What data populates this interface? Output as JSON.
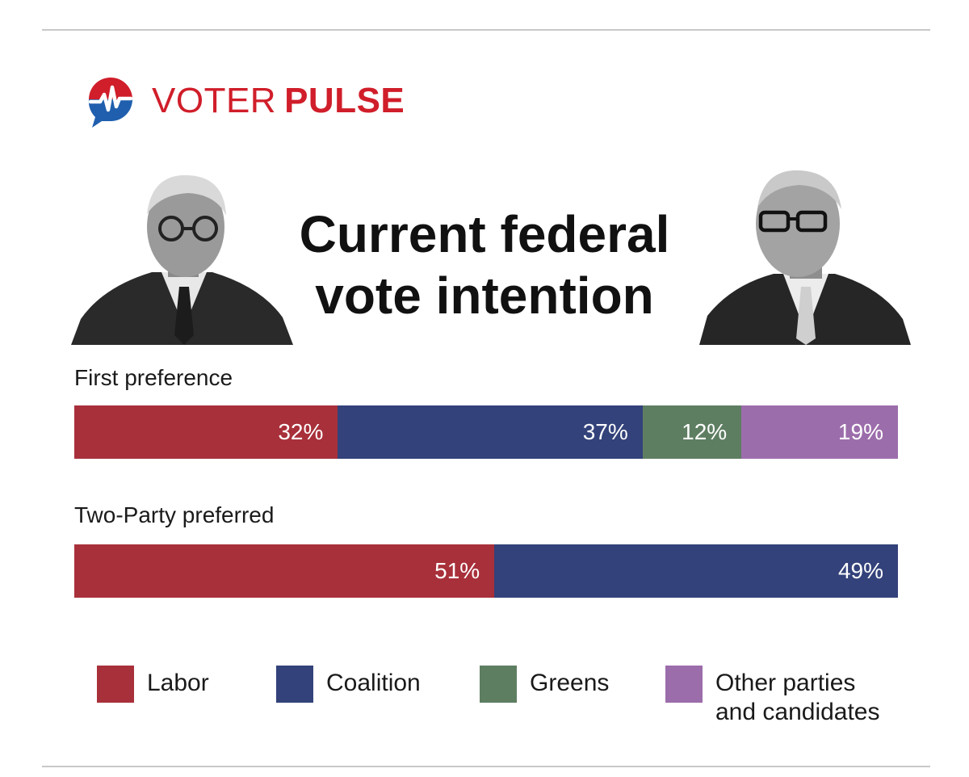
{
  "brand": {
    "name_part1": "VOTER",
    "name_part2": "PULSE",
    "logo_icon": "heartbeat-speech-bubble-icon"
  },
  "portraits": {
    "left": "portrait-photo",
    "right": "portrait-photo"
  },
  "colors": {
    "labor": "#a8303a",
    "coalition": "#33427a",
    "greens": "#5e7e62",
    "other": "#9c6dab",
    "brand_red": "#d01e2a",
    "brand_blue": "#1f5fae"
  },
  "chart_data": {
    "type": "bar",
    "title_line1": "Current federal",
    "title_line2": "vote intention",
    "stacked": true,
    "orientation": "horizontal",
    "xlim": [
      0,
      100
    ],
    "categories": [
      "First preference",
      "Two-Party preferred"
    ],
    "series": [
      {
        "name": "Labor",
        "values": [
          32,
          51
        ],
        "labels": [
          "32%",
          "51%"
        ],
        "color": "#a8303a"
      },
      {
        "name": "Coalition",
        "values": [
          37,
          49
        ],
        "labels": [
          "37%",
          "49%"
        ],
        "color": "#33427a"
      },
      {
        "name": "Greens",
        "values": [
          12,
          null
        ],
        "labels": [
          "12%",
          ""
        ],
        "color": "#5e7e62"
      },
      {
        "name": "Other parties and candidates",
        "values": [
          19,
          null
        ],
        "labels": [
          "19%",
          ""
        ],
        "color": "#9c6dab"
      }
    ],
    "legend_position": "bottom",
    "legend": [
      {
        "line1": "Labor",
        "line2": ""
      },
      {
        "line1": "Coalition",
        "line2": ""
      },
      {
        "line1": "Greens",
        "line2": ""
      },
      {
        "line1": "Other parties",
        "line2": "and candidates"
      }
    ],
    "grid": false
  }
}
